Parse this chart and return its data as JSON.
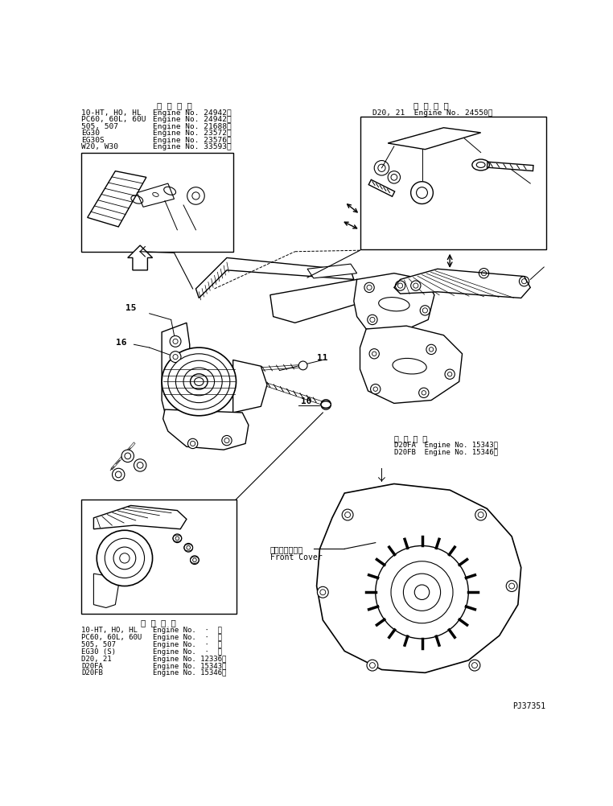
{
  "background_color": "#ffffff",
  "text_color": "#000000",
  "fig_width": 7.62,
  "fig_height": 10.02,
  "dpi": 100,
  "top_left_title": "適 用 号 機",
  "top_left_rows": [
    [
      "10-HT, HO, HL",
      "Engine No. 24942～"
    ],
    [
      "PC60, 60L, 60U",
      "Engine No. 24942～"
    ],
    [
      "505, 507",
      "Engine No. 21688～"
    ],
    [
      "EG30",
      "Engine No. 23572～"
    ],
    [
      "EG30S",
      "Engine No. 23576～"
    ],
    [
      "W20, W30",
      "Engine No. 33593～"
    ]
  ],
  "top_right_title": "適 用 号 機",
  "top_right_row": "D20, 21  Engine No. 24550～",
  "mid_right_title": "適 用 号 機",
  "mid_right_rows": [
    "D20FA  Engine No. 15343～",
    "D20FB  Engine No. 15346～"
  ],
  "bot_left_title": "適 用 号 機",
  "bot_left_rows": [
    [
      "10-HT, HO, HL",
      "Engine No.  ·  ～"
    ],
    [
      "PC60, 60L, 60U",
      "Engine No.  ·  ～"
    ],
    [
      "505, 507",
      "Engine No.  ·  ～"
    ],
    [
      "EG30 (S)",
      "Engine No.  ·  ～"
    ],
    [
      "D20, 21",
      "Engine No. 12336～"
    ],
    [
      "D20FA",
      "Engine No. 15343～"
    ],
    [
      "D20FB",
      "Engine No. 15346～"
    ]
  ],
  "front_cover_ja": "フロントカバー",
  "front_cover_en": "Front Cover",
  "part_number": "PJ37351",
  "part_labels": [
    "10",
    "11",
    "15",
    "16"
  ]
}
